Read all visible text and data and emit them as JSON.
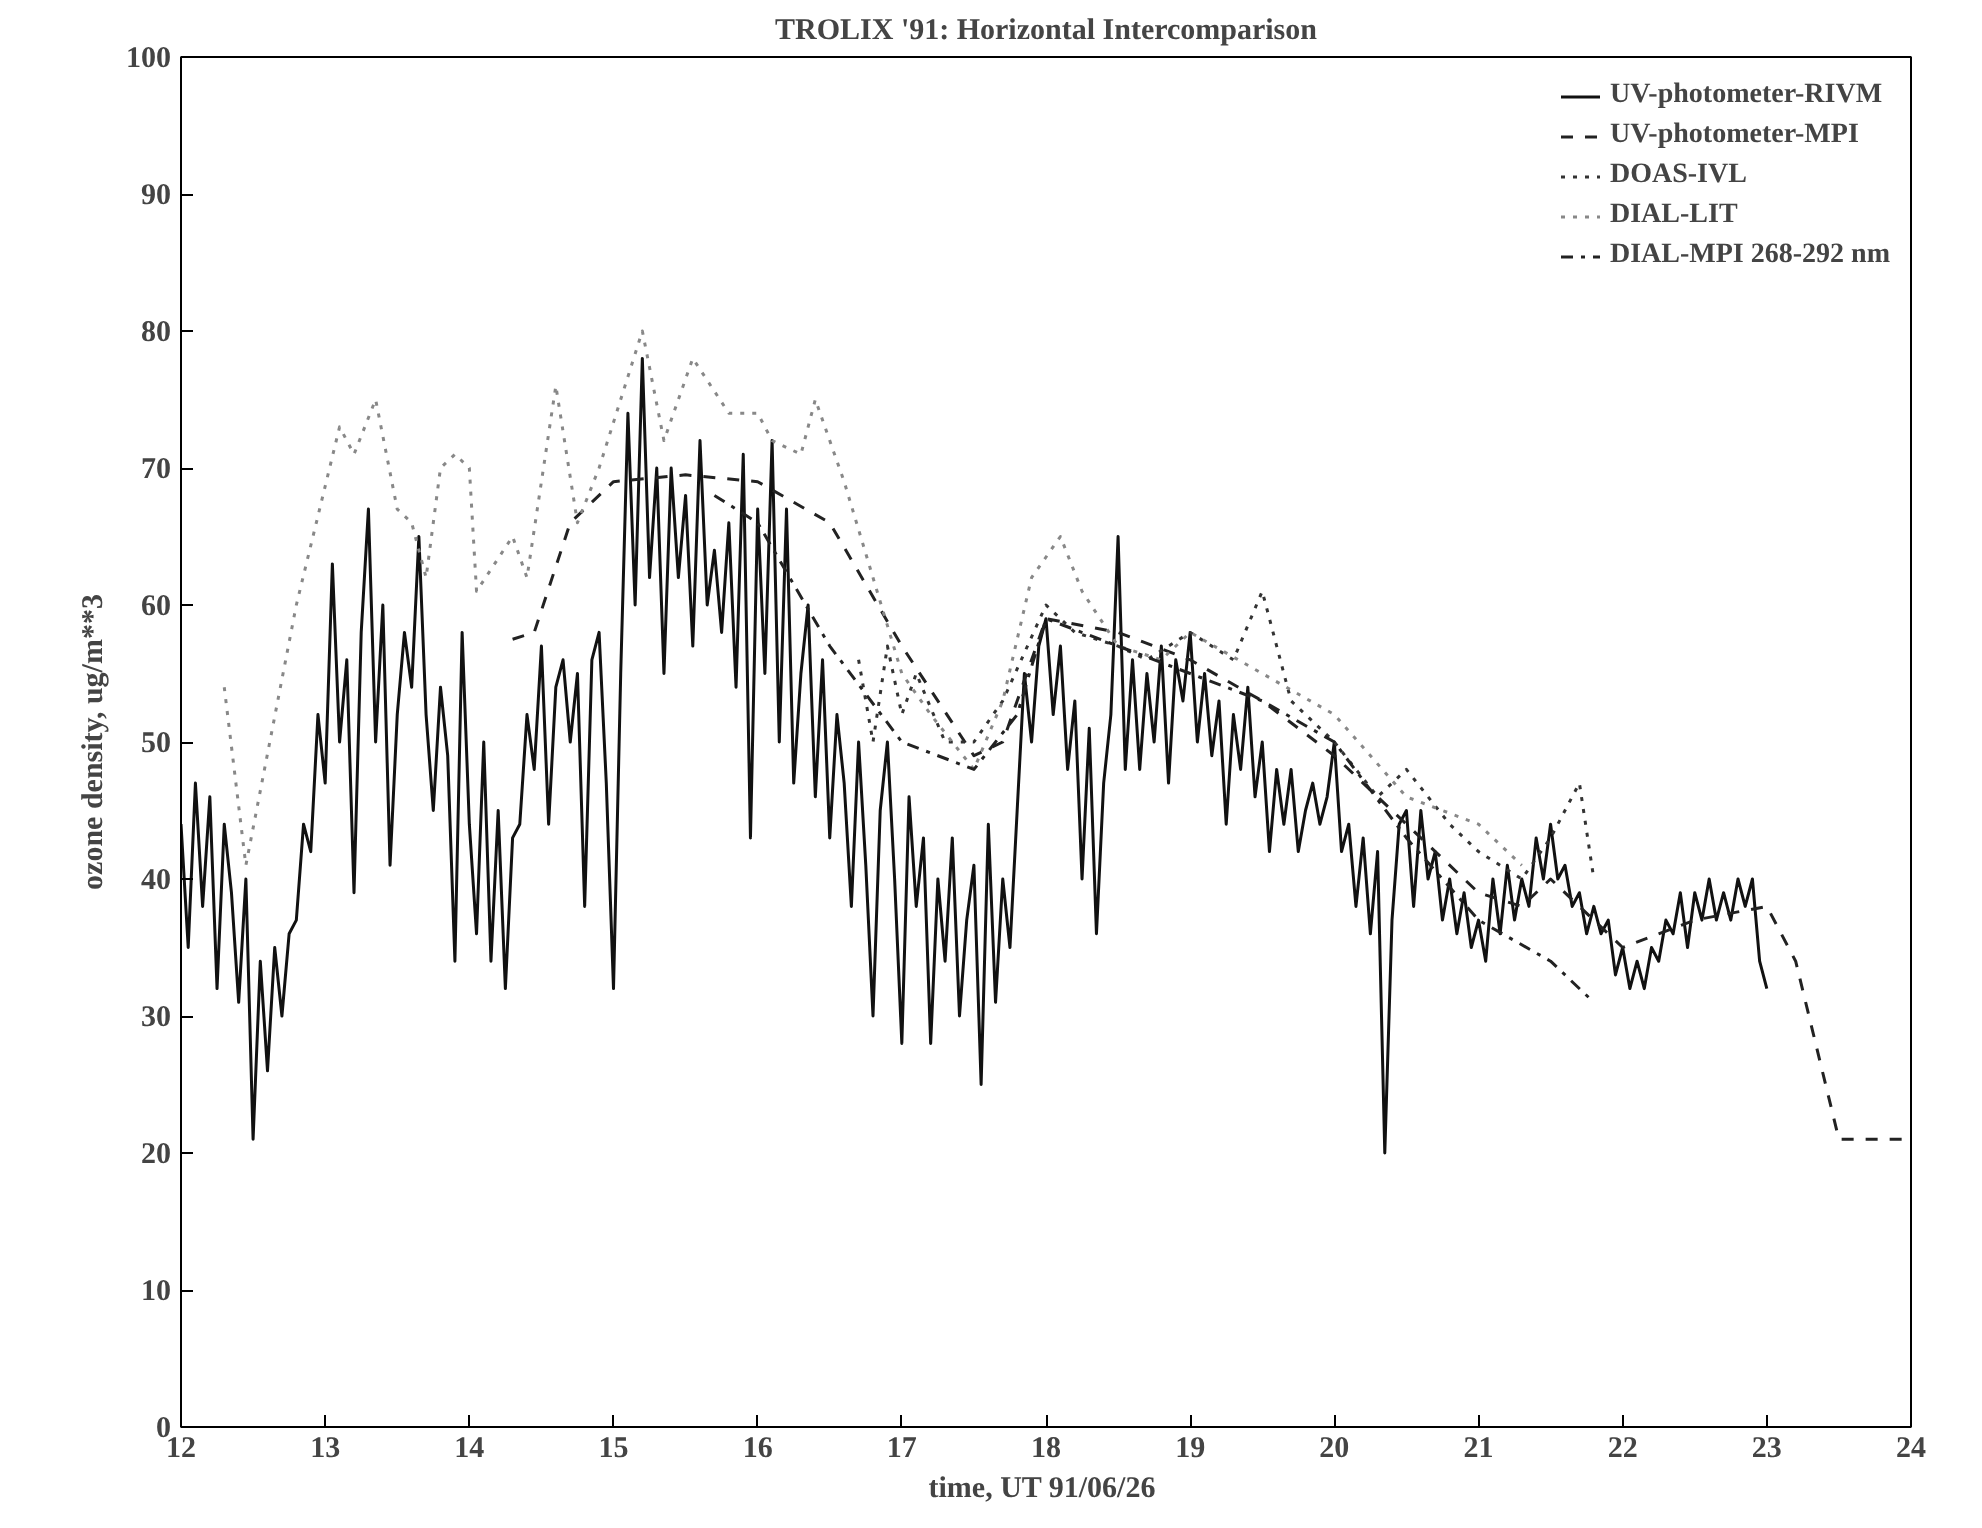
{
  "chart_data": {
    "type": "line",
    "title": "TROLIX '91: Horizontal Intercomparison",
    "xlabel": "time, UT  91/06/26",
    "ylabel": "ozone density, ug/m**3",
    "xlim": [
      12,
      24
    ],
    "ylim": [
      0,
      100
    ],
    "xticks": [
      12,
      13,
      14,
      15,
      16,
      17,
      18,
      19,
      20,
      21,
      22,
      23,
      24
    ],
    "yticks": [
      0,
      10,
      20,
      30,
      40,
      50,
      60,
      70,
      80,
      90,
      100
    ],
    "grid": false,
    "legend": "top right",
    "series": [
      {
        "name": "UV-photometer-RIVM",
        "color": "#111111",
        "line_style": "solid",
        "x": [
          12.0,
          12.05,
          12.1,
          12.15,
          12.2,
          12.25,
          12.3,
          12.35,
          12.4,
          12.45,
          12.5,
          12.55,
          12.6,
          12.65,
          12.7,
          12.75,
          12.8,
          12.85,
          12.9,
          12.95,
          13.0,
          13.05,
          13.1,
          13.15,
          13.2,
          13.25,
          13.3,
          13.35,
          13.4,
          13.45,
          13.5,
          13.55,
          13.6,
          13.65,
          13.7,
          13.75,
          13.8,
          13.85,
          13.9,
          13.95,
          14.0,
          14.05,
          14.1,
          14.15,
          14.2,
          14.25,
          14.3,
          14.35,
          14.4,
          14.45,
          14.5,
          14.55,
          14.6,
          14.65,
          14.7,
          14.75,
          14.8,
          14.85,
          14.9,
          14.95,
          15.0,
          15.05,
          15.1,
          15.15,
          15.2,
          15.25,
          15.3,
          15.35,
          15.4,
          15.45,
          15.5,
          15.55,
          15.6,
          15.65,
          15.7,
          15.75,
          15.8,
          15.85,
          15.9,
          15.95,
          16.0,
          16.05,
          16.1,
          16.15,
          16.2,
          16.25,
          16.3,
          16.35,
          16.4,
          16.45,
          16.5,
          16.55,
          16.6,
          16.65,
          16.7,
          16.75,
          16.8,
          16.85,
          16.9,
          16.95,
          17.0,
          17.05,
          17.1,
          17.15,
          17.2,
          17.25,
          17.3,
          17.35,
          17.4,
          17.45,
          17.5,
          17.55,
          17.6,
          17.65,
          17.7,
          17.75,
          17.8,
          17.85,
          17.9,
          17.95,
          18.0,
          18.05,
          18.1,
          18.15,
          18.2,
          18.25,
          18.3,
          18.35,
          18.4,
          18.45,
          18.5,
          18.55,
          18.6,
          18.65,
          18.7,
          18.75,
          18.8,
          18.85,
          18.9,
          18.95,
          19.0,
          19.05,
          19.1,
          19.15,
          19.2,
          19.25,
          19.3,
          19.35,
          19.4,
          19.45,
          19.5,
          19.55,
          19.6,
          19.65,
          19.7,
          19.75,
          19.8,
          19.85,
          19.9,
          19.95,
          20.0,
          20.05,
          20.1,
          20.15,
          20.2,
          20.25,
          20.3,
          20.35,
          20.4,
          20.45,
          20.5,
          20.55,
          20.6,
          20.65,
          20.7,
          20.75,
          20.8,
          20.85,
          20.9,
          20.95,
          21.0,
          21.05,
          21.1,
          21.15,
          21.2,
          21.25,
          21.3,
          21.35,
          21.4,
          21.45,
          21.5,
          21.55,
          21.6,
          21.65,
          21.7,
          21.75,
          21.8,
          21.85,
          21.9,
          21.95,
          22.0,
          22.05,
          22.1,
          22.15,
          22.2,
          22.25,
          22.3,
          22.35,
          22.4,
          22.45,
          22.5,
          22.55,
          22.6,
          22.65,
          22.7,
          22.75,
          22.8,
          22.85,
          22.9,
          22.95,
          23.0
        ],
        "values": [
          44,
          35,
          47,
          38,
          46,
          32,
          44,
          39,
          31,
          40,
          21,
          34,
          26,
          35,
          30,
          36,
          37,
          44,
          42,
          52,
          47,
          63,
          50,
          56,
          39,
          58,
          67,
          50,
          60,
          41,
          52,
          58,
          54,
          65,
          52,
          45,
          54,
          49,
          34,
          58,
          44,
          36,
          50,
          34,
          45,
          32,
          43,
          44,
          52,
          48,
          57,
          44,
          54,
          56,
          50,
          55,
          38,
          56,
          58,
          47,
          32,
          55,
          74,
          60,
          78,
          62,
          70,
          55,
          70,
          62,
          68,
          57,
          72,
          60,
          64,
          58,
          66,
          54,
          71,
          43,
          67,
          55,
          72,
          50,
          67,
          47,
          55,
          60,
          46,
          56,
          43,
          52,
          47,
          38,
          50,
          41,
          30,
          45,
          50,
          40,
          28,
          46,
          38,
          43,
          28,
          40,
          34,
          43,
          30,
          37,
          41,
          25,
          44,
          31,
          40,
          35,
          45,
          55,
          50,
          57,
          59,
          52,
          57,
          48,
          53,
          40,
          51,
          36,
          47,
          52,
          65,
          48,
          56,
          48,
          55,
          50,
          57,
          47,
          56,
          53,
          58,
          50,
          55,
          49,
          53,
          44,
          52,
          48,
          54,
          46,
          50,
          42,
          48,
          44,
          48,
          42,
          45,
          47,
          44,
          46,
          50,
          42,
          44,
          38,
          43,
          36,
          42,
          20,
          37,
          44,
          45,
          38,
          45,
          40,
          42,
          37,
          40,
          36,
          39,
          35,
          37,
          34,
          40,
          36,
          41,
          37,
          40,
          38,
          43,
          40,
          44,
          40,
          41,
          38,
          39,
          36,
          38,
          36,
          37,
          33,
          35,
          32,
          34,
          32,
          35,
          34,
          37,
          36,
          39,
          35,
          39,
          37,
          40,
          37,
          39,
          37,
          40,
          38,
          40,
          34,
          32
        ]
      },
      {
        "name": "UV-photometer-MPI",
        "color": "#222222",
        "line_style": "dashed",
        "x": [
          14.3,
          14.45,
          14.7,
          15.0,
          15.5,
          16.0,
          16.5,
          17.0,
          17.5,
          17.7,
          18.0,
          18.5,
          19.0,
          19.5,
          20.0,
          20.5,
          21.0,
          21.3,
          21.5,
          22.0,
          22.5,
          23.0,
          23.2,
          23.5,
          24.0
        ],
        "values": [
          57.5,
          58,
          66,
          69,
          69.5,
          69,
          66,
          57,
          49,
          50,
          59,
          58,
          56,
          53,
          49,
          44,
          39,
          38,
          40,
          35,
          37,
          38,
          34,
          21,
          21
        ]
      },
      {
        "name": "DOAS-IVL",
        "color": "#333333",
        "line_style": "dotted",
        "x": [
          16.7,
          16.8,
          16.9,
          17.0,
          17.1,
          17.3,
          17.5,
          17.7,
          18.0,
          18.2,
          18.5,
          18.7,
          19.0,
          19.3,
          19.5,
          19.7,
          20.0,
          20.3,
          20.5,
          20.8,
          21.0,
          21.3,
          21.5,
          21.7,
          21.8
        ],
        "values": [
          56,
          50,
          57,
          52,
          55,
          50,
          50,
          53,
          60,
          58,
          57,
          56,
          58,
          56,
          61,
          53,
          50,
          46,
          48,
          44,
          42,
          40,
          43,
          47,
          40
        ]
      },
      {
        "name": "DIAL-LIT",
        "color": "#888888",
        "line_style": "dotted",
        "x": [
          12.3,
          12.45,
          12.8,
          13.1,
          13.2,
          13.35,
          13.5,
          13.6,
          13.7,
          13.8,
          13.9,
          14.0,
          14.05,
          14.3,
          14.4,
          14.6,
          14.75,
          14.9,
          15.2,
          15.35,
          15.55,
          15.8,
          16.0,
          16.1,
          16.3,
          16.4,
          16.6,
          16.8,
          17.0,
          17.2,
          17.5,
          17.7,
          17.9,
          18.1,
          18.25,
          18.5,
          18.8,
          19.0,
          19.5,
          20.0,
          20.5,
          21.0,
          21.3
        ],
        "values": [
          54,
          41,
          60,
          73,
          71,
          75,
          67,
          66,
          62,
          70,
          71,
          70,
          61,
          65,
          62,
          76,
          66,
          70,
          80,
          72,
          78,
          74,
          74,
          72,
          71,
          75,
          69,
          62,
          55,
          52,
          48,
          53,
          62,
          65,
          61,
          57,
          56,
          58,
          55,
          52,
          46,
          44,
          41
        ]
      },
      {
        "name": "DIAL-MPI 268-292 nm",
        "color": "#222222",
        "line_style": "dashdot",
        "x": [
          15.7,
          16.0,
          16.5,
          17.0,
          17.5,
          17.8,
          18.0,
          18.5,
          19.0,
          19.5,
          20.0,
          20.5,
          21.0,
          21.5,
          21.8
        ],
        "values": [
          68,
          66,
          57,
          50,
          48,
          52,
          59,
          57,
          55,
          53,
          50,
          43,
          37,
          34,
          31
        ]
      }
    ]
  }
}
